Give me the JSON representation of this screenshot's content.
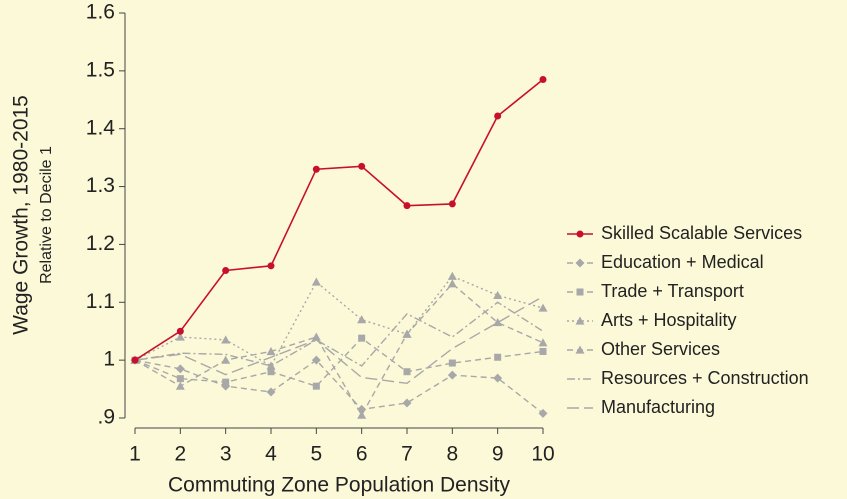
{
  "chart_data": {
    "type": "line",
    "y_label": "Wage Growth, 1980-2015",
    "y_sublabel": "Relative to Decile 1",
    "x_label": "Commuting Zone Population Density",
    "x": [
      1,
      2,
      3,
      4,
      5,
      6,
      7,
      8,
      9,
      10
    ],
    "xlim": [
      1,
      10
    ],
    "xticks": [
      1,
      2,
      3,
      4,
      5,
      6,
      7,
      8,
      9,
      10
    ],
    "ylim": [
      0.9,
      1.6
    ],
    "yticks": [
      {
        "value": 0.9,
        "label": ".9"
      },
      1,
      1.1,
      1.2,
      1.3,
      1.4,
      1.5,
      1.6
    ],
    "legend": "right",
    "series": [
      {
        "name": "Skilled Scalable Services",
        "color": "#c8102e",
        "marker": "circle",
        "dash": "solid",
        "values": [
          1,
          1.05,
          1.155,
          1.163,
          1.33,
          1.335,
          1.267,
          1.27,
          1.422,
          1.485
        ]
      },
      {
        "name": "Education + Medical",
        "color": "#a8a8a8",
        "marker": "diamond",
        "dash": "dashed",
        "values": [
          1,
          0.985,
          0.955,
          0.945,
          1.0,
          0.915,
          0.926,
          0.974,
          0.969,
          0.908
        ]
      },
      {
        "name": "Trade + Transport",
        "color": "#a8a8a8",
        "marker": "square",
        "dash": "dashed",
        "values": [
          1,
          0.968,
          0.962,
          0.98,
          0.955,
          1.038,
          0.98,
          0.995,
          1.005,
          1.015
        ]
      },
      {
        "name": "Arts + Hospitality",
        "color": "#a8a8a8",
        "marker": "triangle",
        "dash": "dotted",
        "values": [
          1,
          1.04,
          1.035,
          0.99,
          1.135,
          1.07,
          1.045,
          1.145,
          1.112,
          1.09
        ]
      },
      {
        "name": "Other Services",
        "color": "#a8a8a8",
        "marker": "triangle",
        "dash": "dashed",
        "values": [
          1,
          0.955,
          1.0,
          1.015,
          1.04,
          0.905,
          1.045,
          1.132,
          1.065,
          1.03
        ]
      },
      {
        "name": "Resources + Construction",
        "color": "#a8a8a8",
        "marker": "none",
        "dash": "dashdot",
        "values": [
          1,
          1.012,
          1.01,
          0.99,
          1.035,
          0.99,
          1.08,
          1.04,
          1.1,
          1.05
        ]
      },
      {
        "name": "Manufacturing",
        "color": "#a8a8a8",
        "marker": "none",
        "dash": "longdash",
        "values": [
          1,
          1.01,
          0.975,
          1.005,
          1.035,
          0.97,
          0.96,
          1.02,
          1.065,
          1.11
        ]
      }
    ]
  }
}
